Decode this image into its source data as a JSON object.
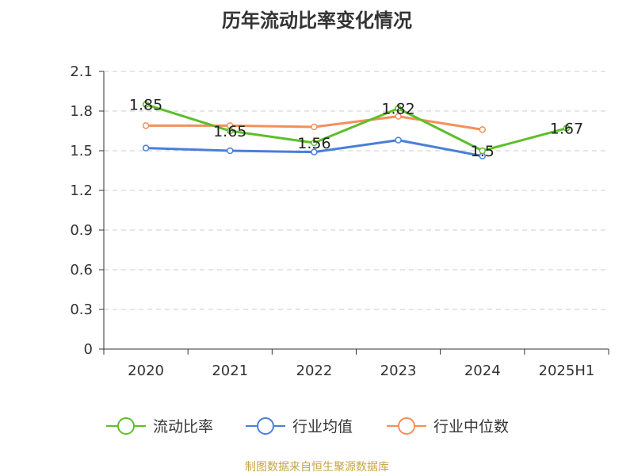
{
  "title": "历年流动比率变化情况",
  "source": "制图数据来自恒生聚源数据库",
  "chart_data": {
    "type": "line",
    "title": "历年流动比率变化情况",
    "categories": [
      "2020",
      "2021",
      "2022",
      "2023",
      "2024",
      "2025H1"
    ],
    "y_ticks": [
      "0",
      "0.3",
      "0.6",
      "0.9",
      "1.2",
      "1.5",
      "1.8",
      "2.1"
    ],
    "ylim": [
      0,
      2.1
    ],
    "grid": true,
    "legend_position": "bottom",
    "series": [
      {
        "name": "流动比率",
        "color": "#5cbf2a",
        "values": [
          1.85,
          1.65,
          1.56,
          1.82,
          1.5,
          1.67
        ],
        "labels": [
          "1.85",
          "1.65",
          "1.56",
          "1.82",
          "1.5",
          "1.67"
        ]
      },
      {
        "name": "行业均值",
        "color": "#4a7fd8",
        "values": [
          1.52,
          1.5,
          1.49,
          1.58,
          1.46,
          null
        ]
      },
      {
        "name": "行业中位数",
        "color": "#f58f5a",
        "values": [
          1.69,
          1.69,
          1.68,
          1.76,
          1.66,
          null
        ]
      }
    ]
  }
}
